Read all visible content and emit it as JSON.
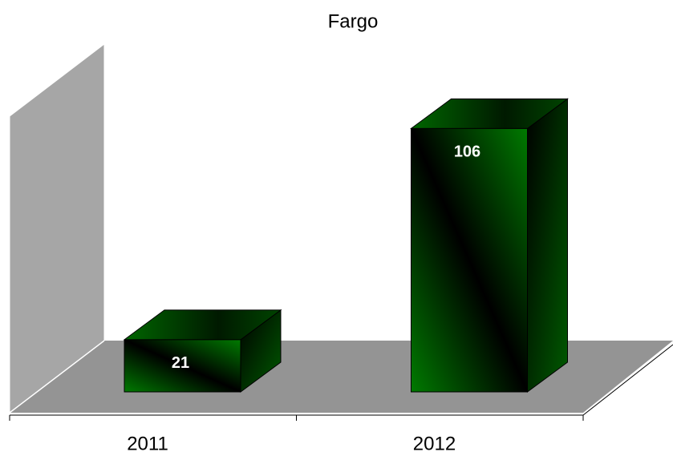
{
  "chart_data": {
    "type": "bar3d",
    "title": "Fargo",
    "categories": [
      "2011",
      "2012"
    ],
    "values": [
      21,
      106
    ],
    "color": "#008000",
    "ylim": [
      0,
      110
    ]
  }
}
